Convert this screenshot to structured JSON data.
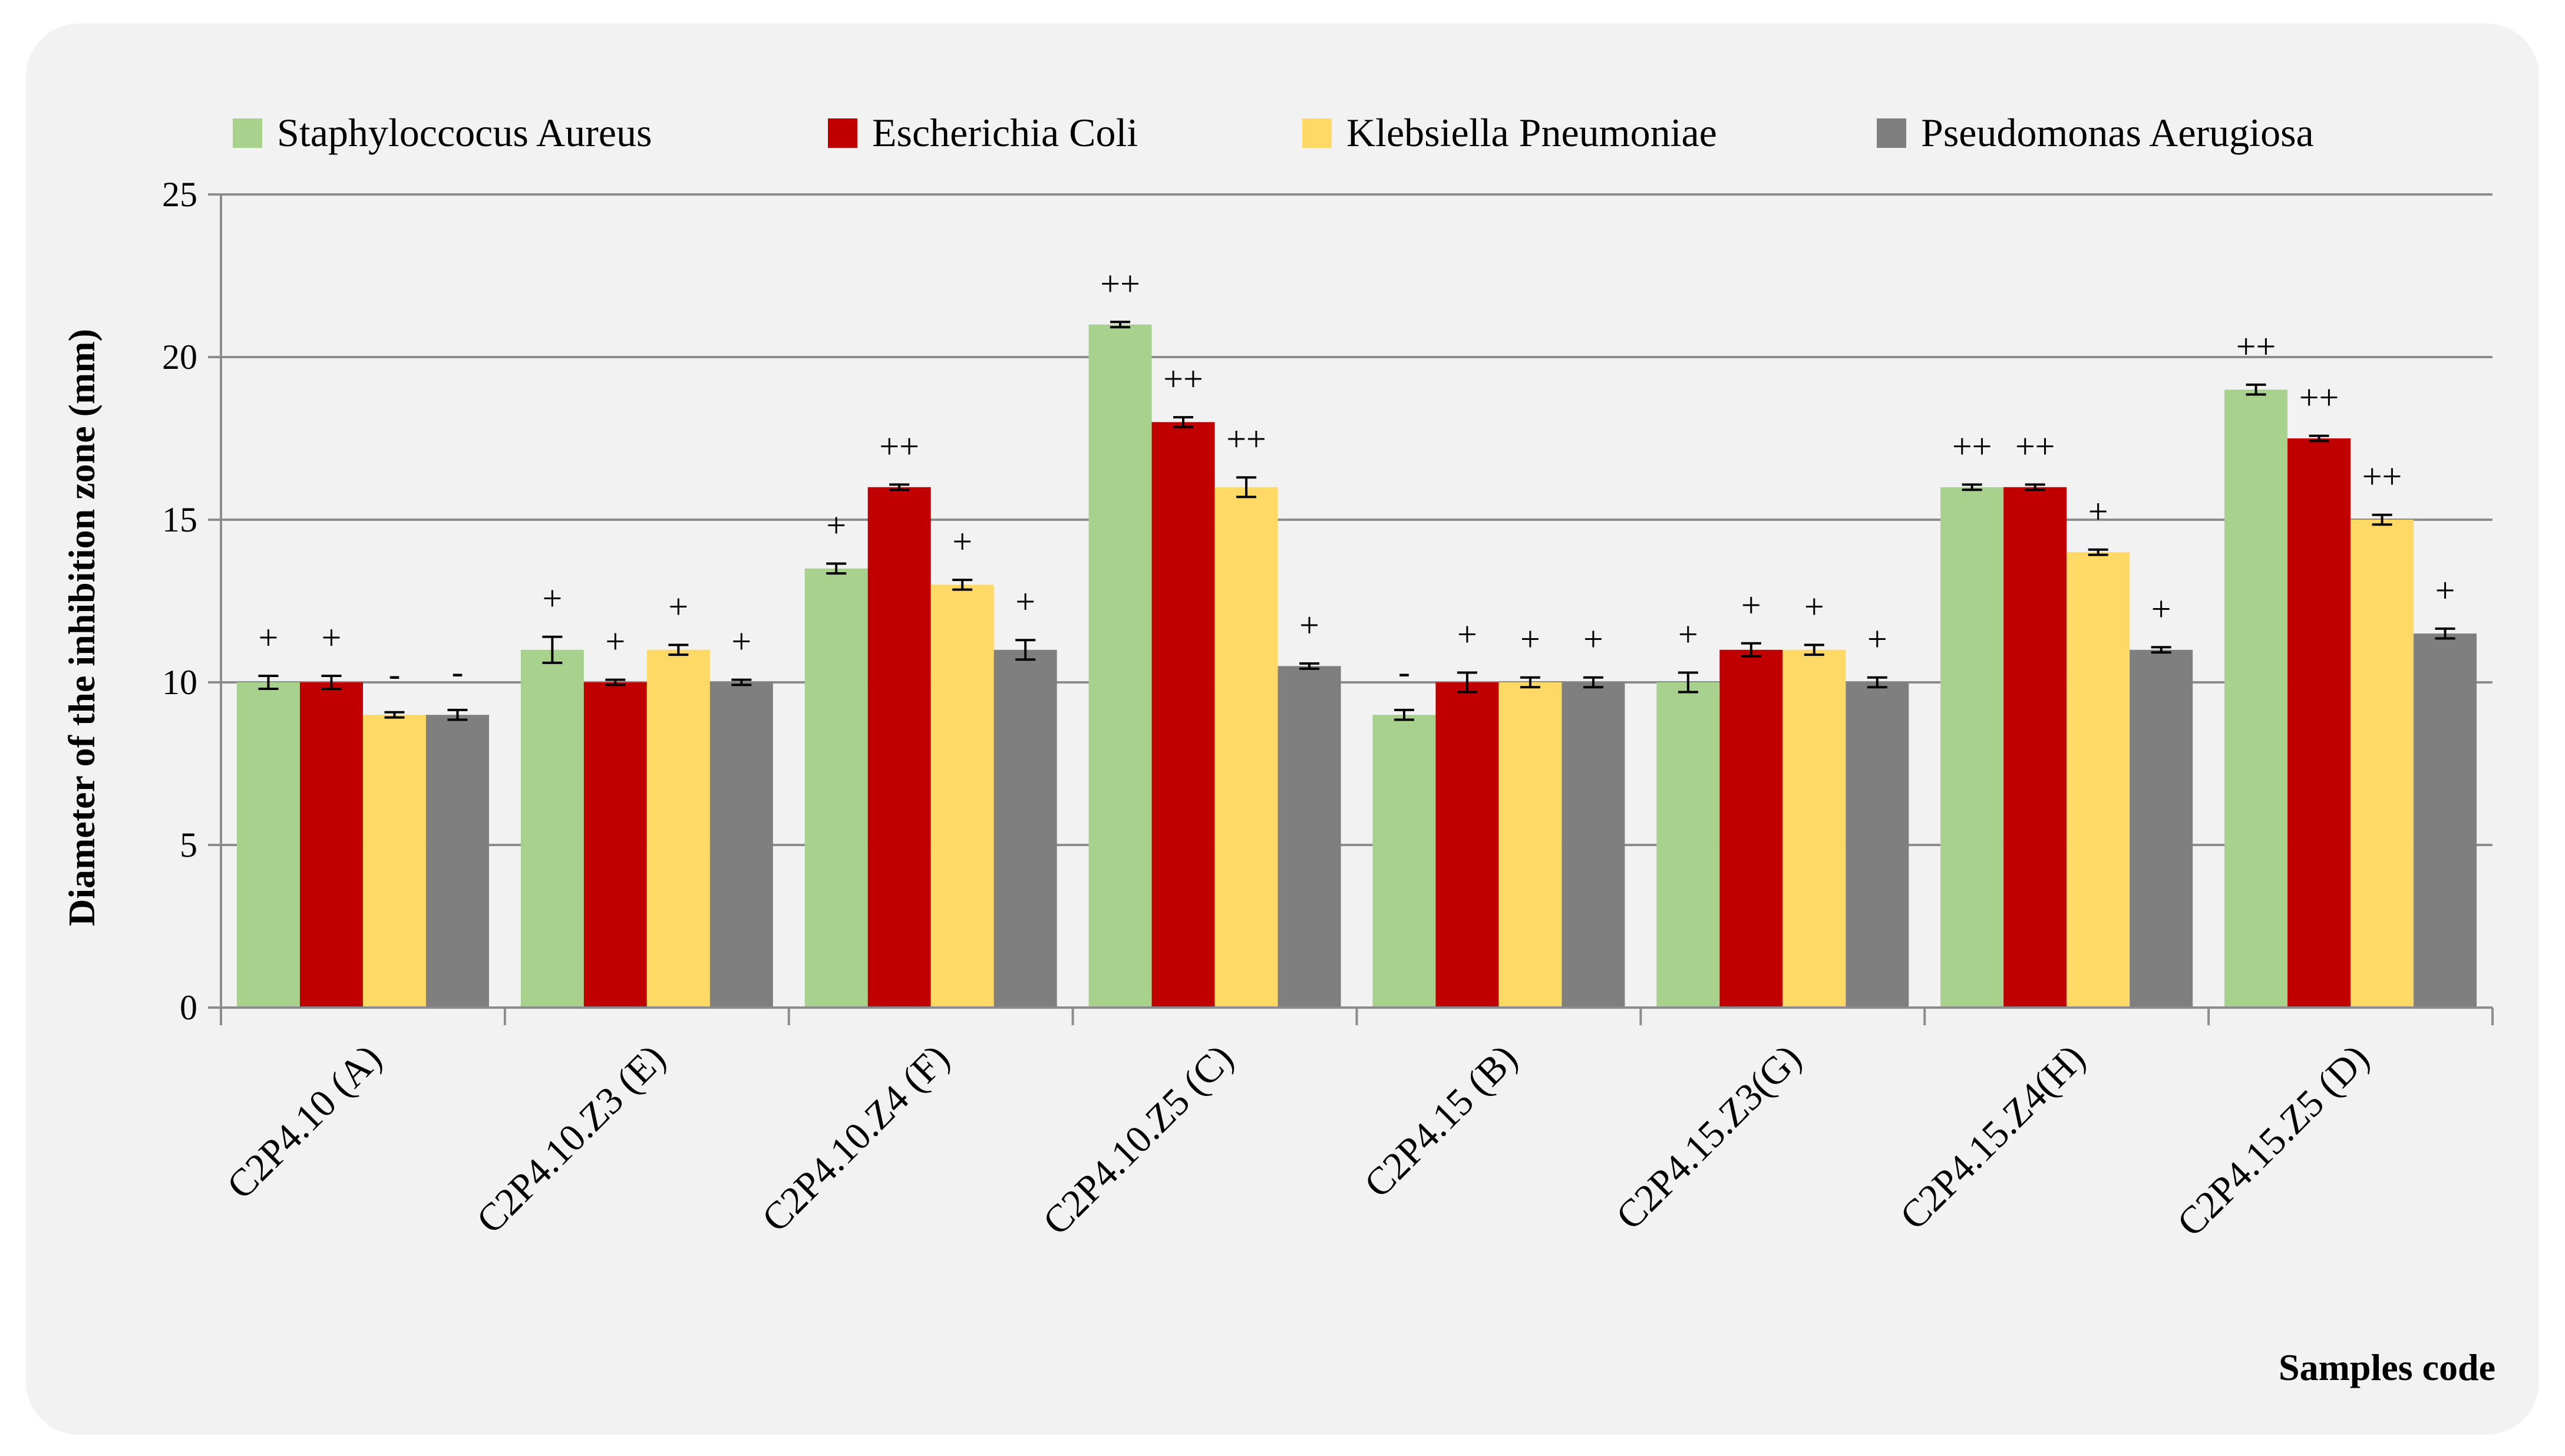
{
  "chart_data": {
    "type": "bar",
    "title": "",
    "xlabel": "Samples code",
    "ylabel": "Diameter of the inhibition zone  (mm)",
    "ylim": [
      0,
      25
    ],
    "yticks": [
      0,
      5,
      10,
      15,
      20,
      25
    ],
    "grid": true,
    "legend_position": "top",
    "categories": [
      "C2P4.10 (A)",
      "C2P4.10.Z3 (E)",
      "C2P4.10.Z4 (F)",
      "C2P4.10.Z5 (C)",
      "C2P4.15 (B)",
      "C2P4.15.Z3(G)",
      "C2P4.15.Z4(H)",
      "C2P4.15.Z5 (D)"
    ],
    "series": [
      {
        "name": "Staphyloccocus Aureus",
        "color": "#a9d18e",
        "values": [
          10,
          11,
          13.5,
          21,
          9,
          10,
          16,
          19
        ],
        "errors": [
          0.2,
          0.4,
          0.15,
          0.08,
          0.15,
          0.3,
          0.08,
          0.15
        ],
        "annotations": [
          "+",
          "+",
          "+",
          "++",
          "-",
          "+",
          "++",
          "++"
        ]
      },
      {
        "name": "Escherichia Coli",
        "color": "#c00000",
        "values": [
          10,
          10,
          16,
          18,
          10,
          11,
          16,
          17.5
        ],
        "errors": [
          0.2,
          0.08,
          0.08,
          0.15,
          0.3,
          0.2,
          0.08,
          0.08
        ],
        "annotations": [
          "+",
          "+",
          "++",
          "++",
          "+",
          "+",
          "++",
          "++"
        ]
      },
      {
        "name": "Klebsiella Pneumoniae",
        "color": "#ffd966",
        "values": [
          9,
          11,
          13,
          16,
          10,
          11,
          14,
          15
        ],
        "errors": [
          0.08,
          0.15,
          0.15,
          0.3,
          0.15,
          0.15,
          0.08,
          0.15
        ],
        "annotations": [
          "-",
          "+",
          "+",
          "++",
          "+",
          "+",
          "+",
          "++"
        ]
      },
      {
        "name": "Pseudomonas Aerugiosa",
        "color": "#7f7f7f",
        "values": [
          9,
          10,
          11,
          10.5,
          10,
          10,
          11,
          11.5
        ],
        "errors": [
          0.15,
          0.08,
          0.3,
          0.08,
          0.15,
          0.15,
          0.08,
          0.15
        ],
        "annotations": [
          "-",
          "+",
          "+",
          "+",
          "+",
          "+",
          "+",
          "+"
        ]
      }
    ]
  }
}
